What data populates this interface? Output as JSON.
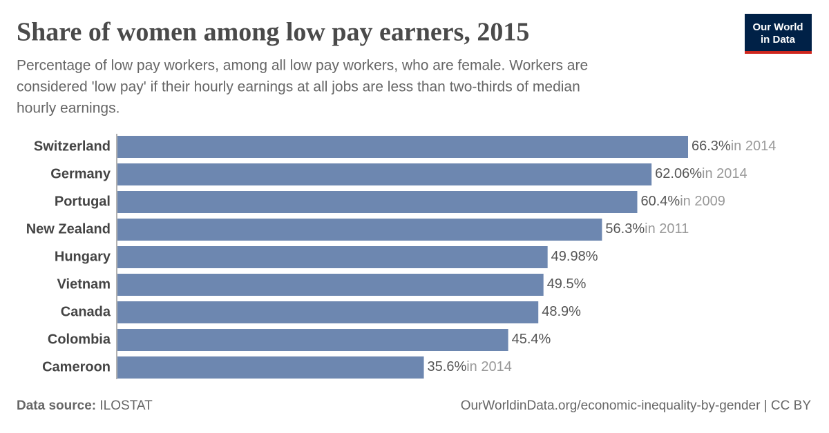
{
  "chart_data": {
    "type": "hbar",
    "title": "Share of women among low pay earners, 2015",
    "subtitle": [
      "Percentage of low pay workers, among all low pay workers, who are female. Workers are",
      "considered 'low pay' if their hourly earnings at all jobs are less than two-thirds of median",
      "hourly earnings."
    ],
    "categories": [
      "Switzerland",
      "Germany",
      "Portugal",
      "New Zealand",
      "Hungary",
      "Vietnam",
      "Canada",
      "Colombia",
      "Cameroon"
    ],
    "values": [
      66.3,
      62.06,
      60.4,
      56.3,
      49.98,
      49.5,
      48.9,
      45.4,
      35.6
    ],
    "value_labels": [
      "66.3%",
      "62.06%",
      "60.4%",
      "56.3%",
      "49.98%",
      "49.5%",
      "48.9%",
      "45.4%",
      "35.6%"
    ],
    "year_notes": [
      "in 2014",
      "in 2014",
      "in 2009",
      "in 2011",
      null,
      null,
      null,
      null,
      "in 2014"
    ],
    "color": "#6d87b0",
    "logo": [
      "Our World",
      "in Data"
    ],
    "source_label": "Data source:",
    "source": "ILOSTAT",
    "url": "OurWorldinData.org/economic-inequality-by-gender | CC BY"
  }
}
